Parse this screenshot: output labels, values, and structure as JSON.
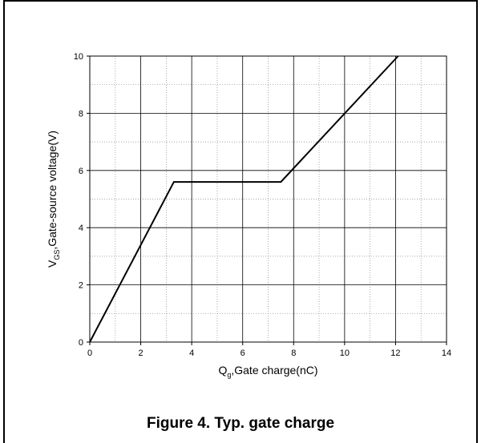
{
  "caption": "Figure 4. Typ. gate charge",
  "chart_data": {
    "type": "line",
    "xlabel": {
      "main": "Q",
      "sub": "g",
      "rest": ",Gate charge(nC)"
    },
    "ylabel": {
      "main": "V",
      "sub": "GS",
      "rest": ",Gate-source voltage(V)"
    },
    "xlim": [
      0,
      14
    ],
    "ylim": [
      0,
      10
    ],
    "xticks": [
      0,
      2,
      4,
      6,
      8,
      10,
      12,
      14
    ],
    "yticks": [
      0,
      2,
      4,
      6,
      8,
      10
    ],
    "grid": true,
    "series": [
      {
        "x": [
          0,
          3.3,
          7.5,
          12.1
        ],
        "y": [
          0,
          5.6,
          5.6,
          10
        ],
        "color": "#000000"
      }
    ]
  }
}
